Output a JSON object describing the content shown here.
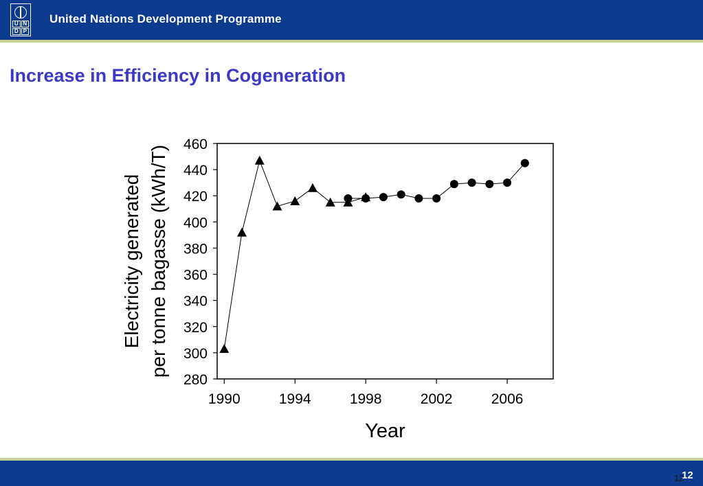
{
  "header": {
    "org_name": "United Nations Development Programme",
    "logo_letters": [
      "U",
      "N",
      "D",
      "P"
    ],
    "bar_color": "#0b3a8f",
    "rule_color": "#c9cf9a"
  },
  "slide": {
    "title": "Increase in Efficiency in Cogeneration",
    "title_color": "#3a3ac4",
    "page_number": "12",
    "page_number_small": "12"
  },
  "chart_data": {
    "type": "line",
    "title": "",
    "xlabel": "Year",
    "ylabel_lines": [
      "Electricity generated",
      "per tonne bagasse  (kWh/T)"
    ],
    "xlim": [
      1989.6,
      2008.6
    ],
    "ylim": [
      280,
      460
    ],
    "x_ticks": [
      1990,
      1994,
      1998,
      2002,
      2006
    ],
    "x_tick_labels": [
      "1990",
      "1994",
      "1998",
      "2002",
      "2006"
    ],
    "y_ticks": [
      280,
      300,
      320,
      340,
      360,
      380,
      400,
      420,
      440,
      460
    ],
    "y_tick_labels": [
      "280",
      "300",
      "320",
      "340",
      "360",
      "380",
      "400",
      "420",
      "440",
      "460"
    ],
    "grid": false,
    "series": [
      {
        "marker": "triangle",
        "color": "#000000",
        "x": [
          1990,
          1991,
          1992,
          1993,
          1994,
          1995,
          1996,
          1997,
          1998
        ],
        "y": [
          303,
          392,
          447,
          412,
          416,
          426,
          415,
          415,
          419
        ]
      },
      {
        "marker": "circle",
        "color": "#000000",
        "x": [
          1997,
          1998,
          1999,
          2000,
          2001,
          2002,
          2003,
          2004,
          2005,
          2006,
          2007
        ],
        "y": [
          418,
          418,
          419,
          421,
          418,
          418,
          429,
          430,
          429,
          430,
          445
        ]
      }
    ]
  }
}
